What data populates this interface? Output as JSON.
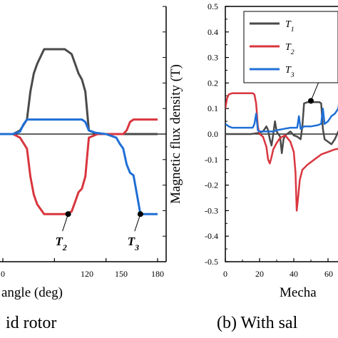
{
  "chart_data": [
    {
      "type": "line",
      "panel": "a",
      "xlabel": "angle (deg)",
      "x_ticks": [
        "0",
        "120",
        "150",
        "180"
      ],
      "xlim": [
        85,
        180
      ],
      "ylim": [
        -0.1,
        0.1
      ],
      "caption": "id rotor",
      "annotations": [
        {
          "text": "T2",
          "series": "T2",
          "x": 128,
          "y": -0.066
        },
        {
          "text": "T3",
          "series": "T3",
          "x": 170,
          "y": -0.066
        }
      ],
      "series": [
        {
          "name": "T1",
          "color": "#4a4a4a",
          "x": [
            85,
            96,
            100,
            104,
            106,
            108,
            110,
            114,
            118,
            126,
            130,
            132,
            134,
            136,
            138,
            140,
            145,
            150,
            160,
            170,
            180
          ],
          "y": [
            0,
            0,
            0.003,
            0.012,
            0.035,
            0.05,
            0.058,
            0.07,
            0.07,
            0.07,
            0.066,
            0.058,
            0.05,
            0.045,
            0.035,
            0.003,
            0,
            0,
            0,
            0,
            0
          ]
        },
        {
          "name": "T2",
          "color": "#d9363e",
          "x": [
            85,
            96,
            100,
            104,
            106,
            108,
            110,
            114,
            118,
            126,
            130,
            132,
            134,
            136,
            138,
            140,
            145,
            150,
            160,
            162,
            164,
            166,
            170,
            180
          ],
          "y": [
            0,
            0,
            -0.003,
            -0.012,
            -0.035,
            -0.05,
            -0.058,
            -0.066,
            -0.066,
            -0.066,
            -0.064,
            -0.056,
            -0.048,
            -0.045,
            -0.035,
            -0.003,
            0,
            0,
            0,
            0.003,
            0.01,
            0.012,
            0.012,
            0.012
          ]
        },
        {
          "name": "T3",
          "color": "#1f6fd6",
          "x": [
            85,
            96,
            100,
            102,
            104,
            110,
            120,
            130,
            136,
            138,
            140,
            144,
            150,
            156,
            158,
            160,
            162,
            164,
            166,
            168,
            170,
            180
          ],
          "y": [
            0,
            0,
            0.002,
            0.008,
            0.012,
            0.012,
            0.012,
            0.012,
            0.012,
            0.01,
            0.003,
            0.001,
            0,
            -0.003,
            -0.008,
            -0.012,
            -0.025,
            -0.032,
            -0.034,
            -0.05,
            -0.066,
            -0.066
          ]
        }
      ]
    },
    {
      "type": "line",
      "panel": "b",
      "ylabel": "Magnetic flux density (T)",
      "xlabel": "Mecha",
      "caption": "(b)  With sal",
      "x_ticks": [
        "0",
        "20",
        "40",
        "60"
      ],
      "y_ticks": [
        "0.5",
        "0.4",
        "0.3",
        "0.2",
        "0.1",
        "0.0",
        "-0.1",
        "-0.2",
        "-0.3",
        "-0.4",
        "-0.5"
      ],
      "xlim": [
        0,
        72
      ],
      "ylim": [
        -0.5,
        0.5
      ],
      "legend": {
        "placement": "top-right",
        "entries": [
          "T1",
          "T2",
          "T3"
        ]
      },
      "annotations": [
        {
          "text": "T1",
          "series": "T1",
          "x": 50,
          "y": 0.13
        }
      ],
      "series": [
        {
          "name": "T1",
          "color": "#4a4a4a",
          "x": [
            0,
            10,
            15,
            20,
            22,
            24,
            25,
            26,
            27,
            28,
            29,
            30,
            32,
            33,
            34,
            35,
            36,
            38,
            40,
            42,
            44,
            45,
            46,
            48,
            50,
            52,
            55,
            56,
            57,
            58,
            60,
            62,
            64,
            66,
            68,
            70,
            72
          ],
          "y": [
            0,
            0,
            0,
            0.005,
            0.01,
            0.03,
            0.015,
            -0.02,
            -0.045,
            0,
            0.05,
            0.01,
            -0.01,
            -0.075,
            -0.02,
            -0.005,
            0,
            0.01,
            -0.005,
            -0.01,
            -0.02,
            0.03,
            0.12,
            0.125,
            0.125,
            0.125,
            0.125,
            0.12,
            0.02,
            -0.02,
            -0.03,
            -0.04,
            -0.02,
            0.01,
            0.02,
            0.02,
            0.02
          ]
        },
        {
          "name": "T2",
          "color": "#d9363e",
          "x": [
            0,
            1,
            2,
            4,
            8,
            12,
            16,
            17,
            18,
            19,
            20,
            22,
            24,
            25,
            26,
            27,
            28,
            30,
            32,
            35,
            38,
            40,
            41,
            41.7,
            42.5,
            43.5,
            45,
            48,
            52,
            56,
            60,
            64,
            68,
            72
          ],
          "y": [
            0.1,
            0.14,
            0.155,
            0.16,
            0.16,
            0.16,
            0.16,
            0.155,
            0.12,
            0.03,
            0,
            -0.01,
            -0.05,
            -0.1,
            -0.115,
            -0.09,
            -0.06,
            -0.035,
            -0.015,
            -0.005,
            -0.03,
            -0.07,
            -0.15,
            -0.3,
            -0.25,
            -0.18,
            -0.14,
            -0.12,
            -0.1,
            -0.08,
            -0.07,
            -0.06,
            -0.055,
            -0.05
          ]
        },
        {
          "name": "T3",
          "color": "#1f6fd6",
          "x": [
            0,
            2,
            4,
            8,
            12,
            16,
            17,
            18,
            19,
            20,
            24,
            28,
            30,
            34,
            38,
            42,
            43,
            44,
            45,
            46,
            50,
            54,
            56,
            57,
            58,
            60,
            62,
            64,
            66,
            68,
            70,
            72
          ],
          "y": [
            0.04,
            0.03,
            0.025,
            0.025,
            0.025,
            0.025,
            0.04,
            0.08,
            0.015,
            0.01,
            0.01,
            0.01,
            0.015,
            0.02,
            0.025,
            0.025,
            0.07,
            0.02,
            0.025,
            0.03,
            0.03,
            0.035,
            0.04,
            0.1,
            0.04,
            0.05,
            0.07,
            0.08,
            0.1,
            0.2,
            0.28,
            0.28
          ]
        }
      ]
    }
  ]
}
